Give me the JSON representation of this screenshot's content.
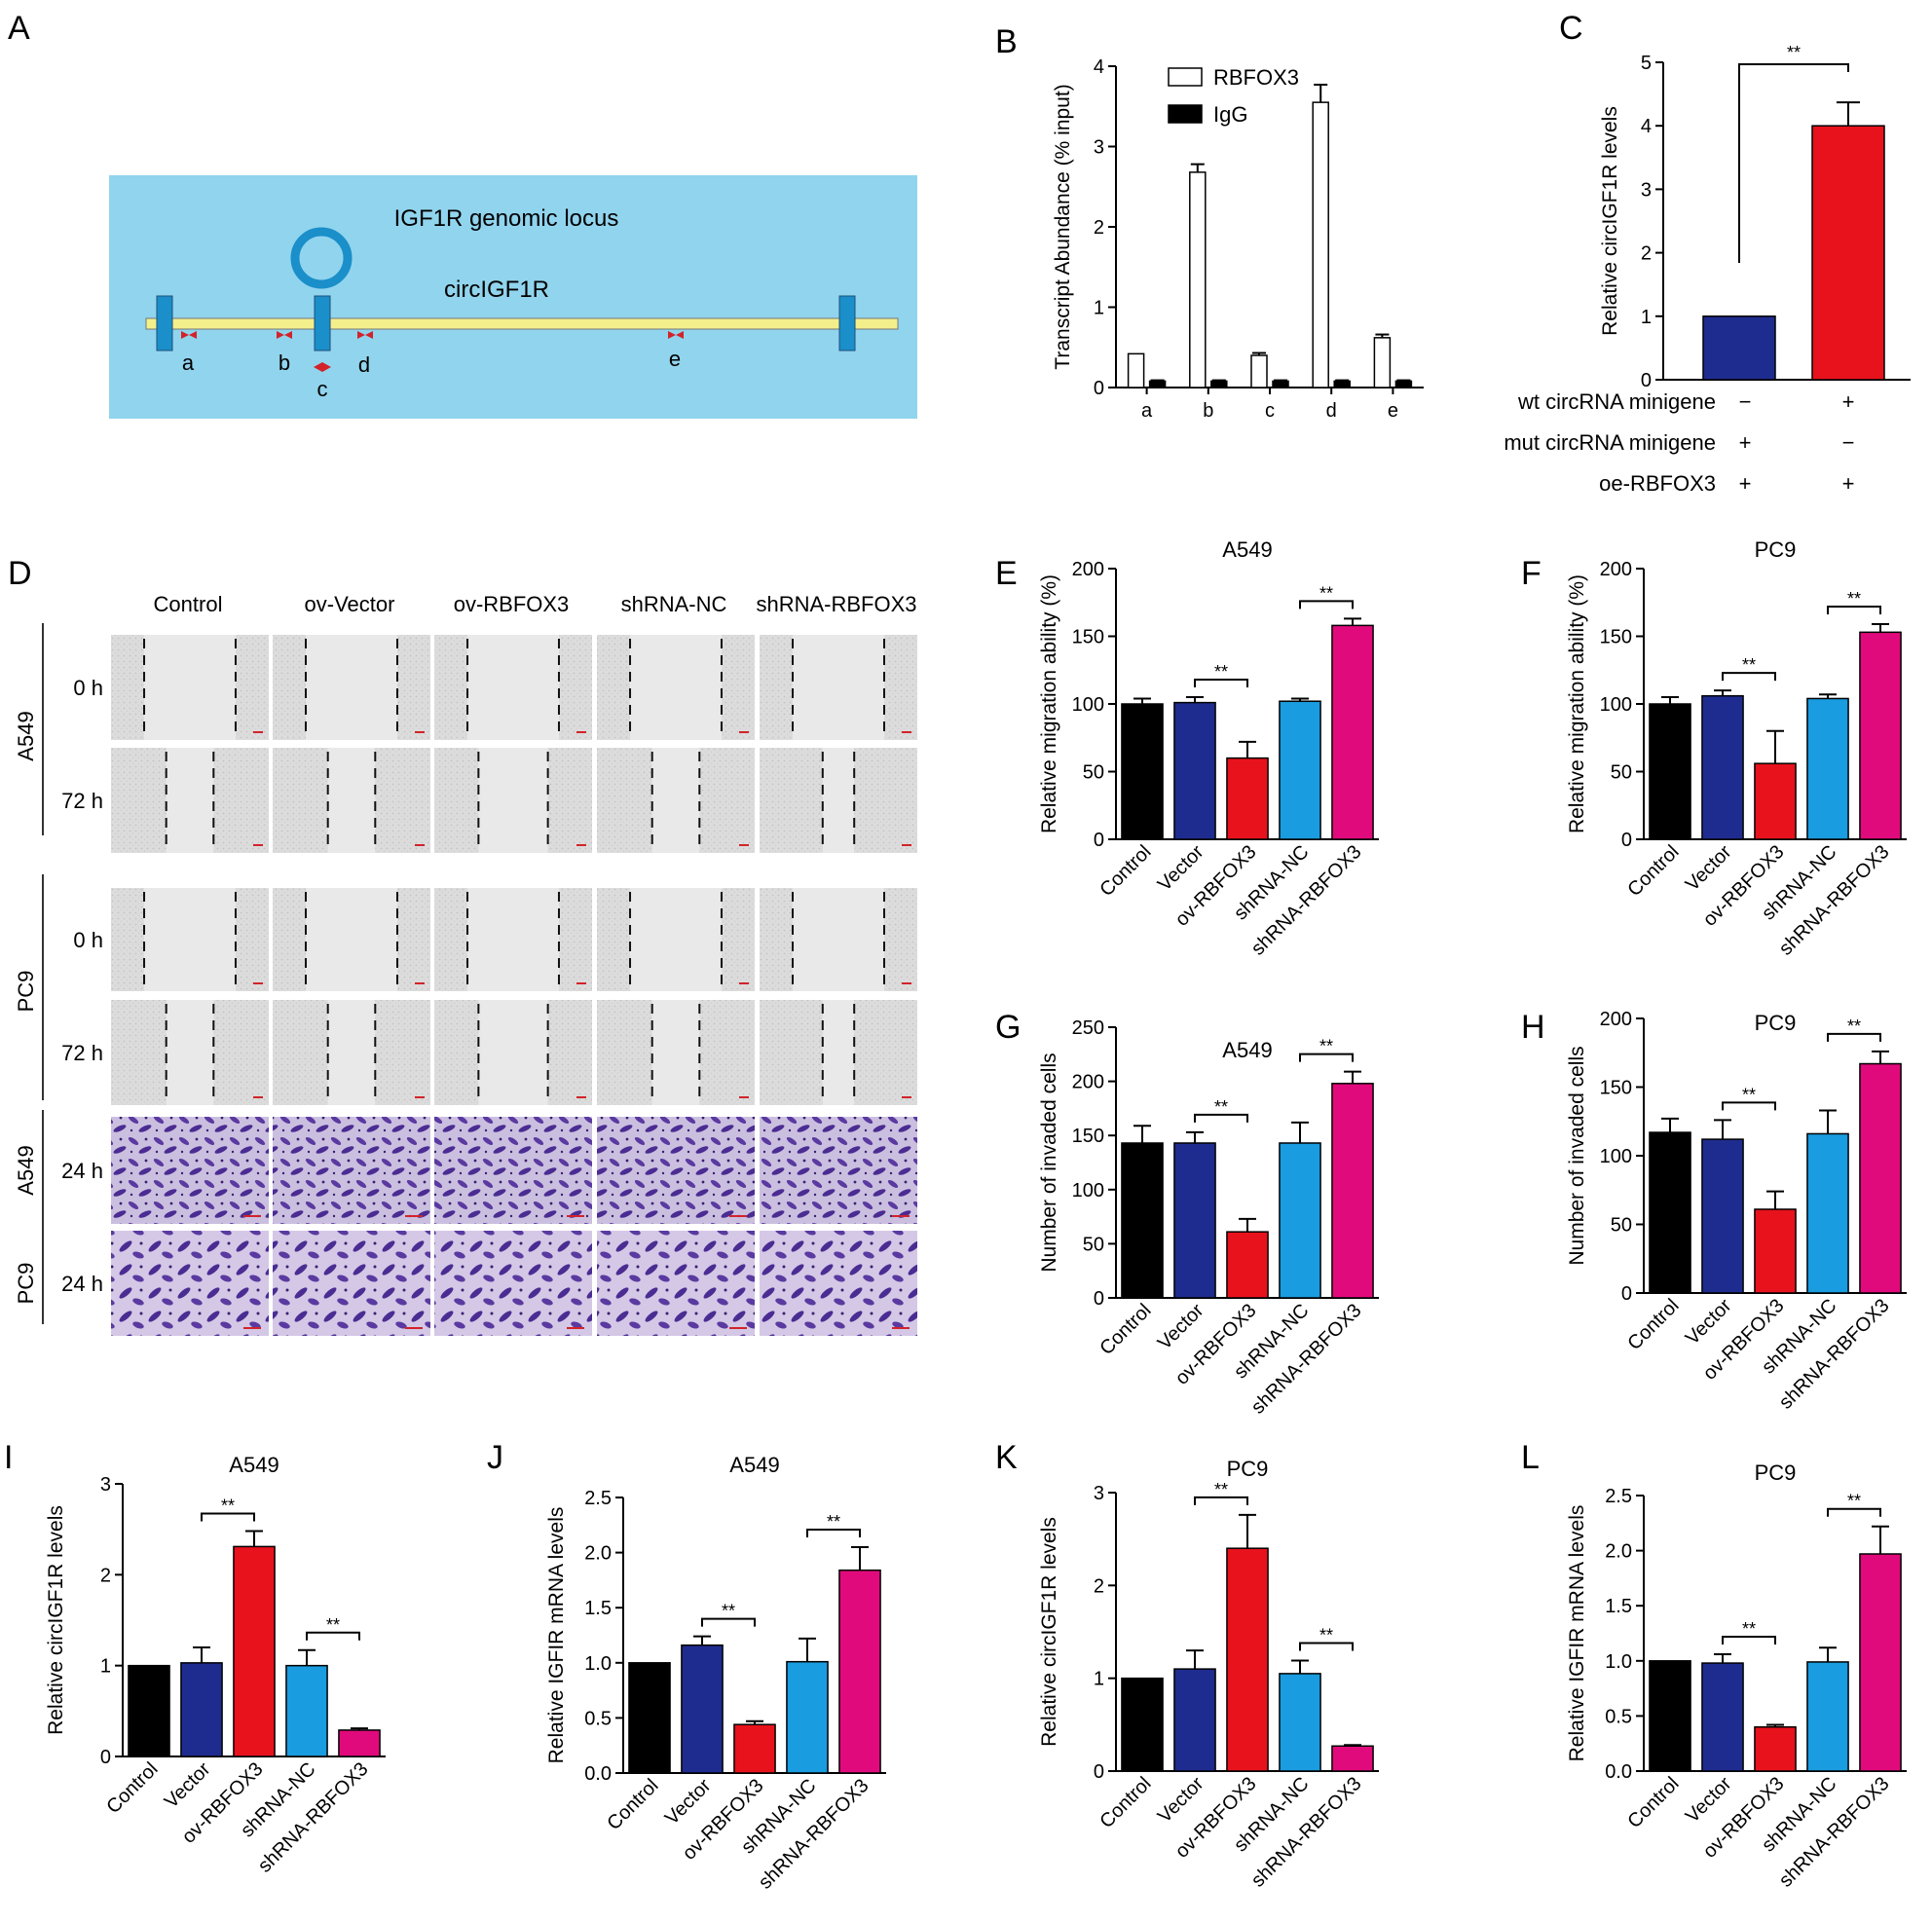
{
  "figure": {
    "panel_letters": [
      "A",
      "B",
      "C",
      "D",
      "E",
      "F",
      "G",
      "H",
      "I",
      "J",
      "K",
      "L"
    ]
  },
  "colors": {
    "black": "#000000",
    "navy": "#1f2c8f",
    "red": "#e8121d",
    "sky": "#1a9ce0",
    "magenta": "#e10a7c",
    "locus_bg": "#91d4ee",
    "locus_line": "#f3f08c",
    "exon": "#1a8fc9",
    "primer": "#d2232a"
  },
  "panel_a": {
    "locus_label": "IGF1R genomic locus",
    "circ_label": "circIGF1R",
    "primers": [
      "a",
      "b",
      "c",
      "d",
      "e"
    ]
  },
  "panel_d": {
    "columns": [
      "Control",
      "ov-Vector",
      "ov-RBFOX3",
      "shRNA-NC",
      "shRNA-RBFOX3"
    ],
    "groups": [
      {
        "cell_line": "A549",
        "times": [
          "0 h",
          "72 h"
        ]
      },
      {
        "cell_line": "PC9",
        "times": [
          "0 h",
          "72 h"
        ]
      }
    ],
    "transwell_rows": [
      {
        "cell_line": "A549",
        "time": "24 h"
      },
      {
        "cell_line": "PC9",
        "time": "24 h"
      }
    ]
  },
  "chart_data": [
    {
      "panel": "B",
      "type": "bar",
      "categories": [
        "a",
        "b",
        "c",
        "d",
        "e"
      ],
      "series": [
        {
          "name": "RBFOX3",
          "values": [
            0.42,
            2.68,
            0.4,
            3.55,
            0.62
          ],
          "errors": [
            0.0,
            0.1,
            0.03,
            0.22,
            0.04
          ],
          "fill": "#ffffff"
        },
        {
          "name": "IgG",
          "values": [
            0.08,
            0.08,
            0.08,
            0.08,
            0.08
          ],
          "errors": [
            0.01,
            0.01,
            0.01,
            0.01,
            0.01
          ],
          "fill": "#000000"
        }
      ],
      "title": "",
      "xlabel": "",
      "ylabel": "Transcript Abundance (% input)",
      "ylim": [
        0,
        4
      ],
      "yticks": [
        "0",
        "1",
        "2",
        "3",
        "4"
      ],
      "legend": "top-left"
    },
    {
      "panel": "C",
      "type": "bar",
      "categories": [
        "mut",
        "wt"
      ],
      "values": [
        1.0,
        4.0
      ],
      "errors": [
        0.0,
        0.37
      ],
      "bar_colors": [
        "#1f2c8f",
        "#e8121d"
      ],
      "ylabel": "Relative circIGF1R levels",
      "ylim": [
        0,
        5
      ],
      "yticks": [
        "0",
        "1",
        "2",
        "3",
        "4",
        "5"
      ],
      "significance": "**",
      "conditions": [
        {
          "label": "wt circRNA minigene",
          "marks": [
            "−",
            "+"
          ]
        },
        {
          "label": "mut circRNA minigene",
          "marks": [
            "+",
            "−"
          ]
        },
        {
          "label": "oe-RBFOX3",
          "marks": [
            "+",
            "+"
          ]
        }
      ]
    },
    {
      "panel": "E",
      "type": "bar",
      "title": "A549",
      "categories": [
        "Control",
        "Vector",
        "ov-RBFOX3",
        "shRNA-NC",
        "shRNA-RBFOX3"
      ],
      "values": [
        100,
        101,
        60,
        102,
        158
      ],
      "errors": [
        4,
        4,
        12,
        2,
        5
      ],
      "ylabel": "Relative migration ability (%)",
      "ylim": [
        0,
        200
      ],
      "yticks": [
        "0",
        "50",
        "100",
        "150",
        "200"
      ],
      "significance": [
        {
          "from": 1,
          "to": 2,
          "text": "**"
        },
        {
          "from": 3,
          "to": 4,
          "text": "**"
        }
      ]
    },
    {
      "panel": "F",
      "type": "bar",
      "title": "PC9",
      "categories": [
        "Control",
        "Vector",
        "ov-RBFOX3",
        "shRNA-NC",
        "shRNA-RBFOX3"
      ],
      "values": [
        100,
        106,
        56,
        104,
        153
      ],
      "errors": [
        5,
        4,
        24,
        3,
        6
      ],
      "ylabel": "Relative migration ability (%)",
      "ylim": [
        0,
        200
      ],
      "yticks": [
        "0",
        "50",
        "100",
        "150",
        "200"
      ],
      "significance": [
        {
          "from": 1,
          "to": 2,
          "text": "**"
        },
        {
          "from": 3,
          "to": 4,
          "text": "**"
        }
      ]
    },
    {
      "panel": "G",
      "type": "bar",
      "title": "A549",
      "categories": [
        "Control",
        "Vector",
        "ov-RBFOX3",
        "shRNA-NC",
        "shRNA-RBFOX3"
      ],
      "values": [
        143,
        143,
        61,
        143,
        198
      ],
      "errors": [
        16,
        10,
        12,
        19,
        11
      ],
      "ylabel": "Number of invaded cells",
      "ylim": [
        0,
        250
      ],
      "yticks": [
        "0",
        "50",
        "100",
        "150",
        "200",
        "250"
      ],
      "significance": [
        {
          "from": 1,
          "to": 2,
          "text": "**"
        },
        {
          "from": 3,
          "to": 4,
          "text": "**"
        }
      ]
    },
    {
      "panel": "H",
      "type": "bar",
      "title": "PC9",
      "categories": [
        "Control",
        "Vector",
        "ov-RBFOX3",
        "shRNA-NC",
        "shRNA-RBFOX3"
      ],
      "values": [
        117,
        112,
        61,
        116,
        167
      ],
      "errors": [
        10,
        14,
        13,
        17,
        9
      ],
      "ylabel": "Number of invaded cells",
      "ylim": [
        0,
        200
      ],
      "yticks": [
        "0",
        "50",
        "100",
        "150",
        "200"
      ],
      "significance": [
        {
          "from": 1,
          "to": 2,
          "text": "**"
        },
        {
          "from": 3,
          "to": 4,
          "text": "**"
        }
      ]
    },
    {
      "panel": "I",
      "type": "bar",
      "title": "A549",
      "categories": [
        "Control",
        "Vector",
        "ov-RBFOX3",
        "shRNA-NC",
        "shRNA-RBFOX3"
      ],
      "values": [
        1.0,
        1.03,
        2.31,
        1.0,
        0.29
      ],
      "errors": [
        0.0,
        0.17,
        0.17,
        0.17,
        0.02
      ],
      "ylabel": "Relative circIGF1R levels",
      "ylim": [
        0,
        3
      ],
      "yticks": [
        "0",
        "1",
        "2",
        "3"
      ],
      "significance": [
        {
          "from": 1,
          "to": 2,
          "text": "**"
        },
        {
          "from": 3,
          "to": 4,
          "text": "**"
        }
      ]
    },
    {
      "panel": "J",
      "type": "bar",
      "title": "A549",
      "categories": [
        "Control",
        "Vector",
        "ov-RBFOX3",
        "shRNA-NC",
        "shRNA-RBFOX3"
      ],
      "values": [
        1.0,
        1.16,
        0.44,
        1.01,
        1.84
      ],
      "errors": [
        0.0,
        0.08,
        0.03,
        0.21,
        0.21
      ],
      "ylabel": "Relative IGFIR mRNA levels",
      "ylim": [
        0,
        2.5
      ],
      "yticks": [
        "0.0",
        "0.5",
        "1.0",
        "1.5",
        "2.0",
        "2.5"
      ],
      "significance": [
        {
          "from": 1,
          "to": 2,
          "text": "**"
        },
        {
          "from": 3,
          "to": 4,
          "text": "**"
        }
      ]
    },
    {
      "panel": "K",
      "type": "bar",
      "title": "PC9",
      "categories": [
        "Control",
        "Vector",
        "ov-RBFOX3",
        "shRNA-NC",
        "shRNA-RBFOX3"
      ],
      "values": [
        1.0,
        1.1,
        2.4,
        1.05,
        0.27
      ],
      "errors": [
        0.0,
        0.2,
        0.36,
        0.14,
        0.01
      ],
      "ylabel": "Relative circIGF1R levels",
      "ylim": [
        0,
        3
      ],
      "yticks": [
        "0",
        "1",
        "2",
        "3"
      ],
      "significance": [
        {
          "from": 1,
          "to": 2,
          "text": "**"
        },
        {
          "from": 3,
          "to": 4,
          "text": "**"
        }
      ]
    },
    {
      "panel": "L",
      "type": "bar",
      "title": "PC9",
      "categories": [
        "Control",
        "Vector",
        "ov-RBFOX3",
        "shRNA-NC",
        "shRNA-RBFOX3"
      ],
      "values": [
        1.0,
        0.98,
        0.4,
        0.99,
        1.97
      ],
      "errors": [
        0.0,
        0.08,
        0.02,
        0.13,
        0.25
      ],
      "ylabel": "Relative IGFIR mRNA levels",
      "ylim": [
        0,
        2.5
      ],
      "yticks": [
        "0.0",
        "0.5",
        "1.0",
        "1.5",
        "2.0",
        "2.5"
      ],
      "significance": [
        {
          "from": 1,
          "to": 2,
          "text": "**"
        },
        {
          "from": 3,
          "to": 4,
          "text": "**"
        }
      ]
    }
  ]
}
